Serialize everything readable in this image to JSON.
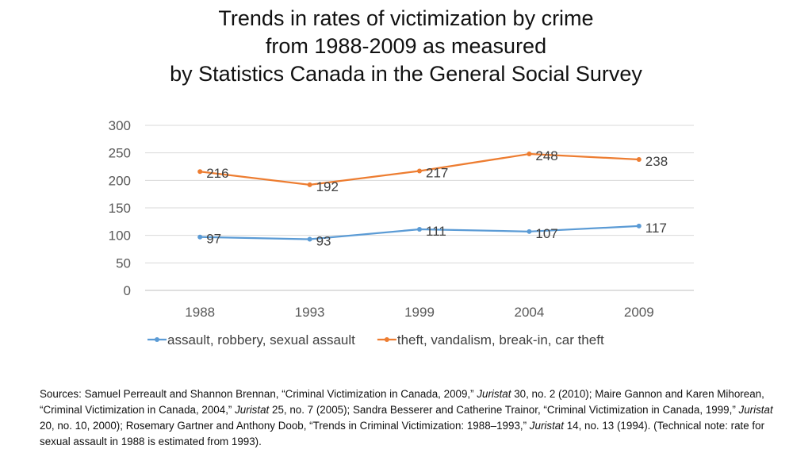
{
  "colors": {
    "series1": "#5b9bd5",
    "series2": "#ed7d31",
    "grid": "#d9d9d9",
    "axis": "#bfbfbf"
  },
  "chart_data": {
    "type": "line",
    "title_lines": [
      "Trends in rates of victimization by crime",
      "from 1988-2009  as measured",
      "by Statistics Canada in the General Social Survey"
    ],
    "categories": [
      "1988",
      "1993",
      "1999",
      "2004",
      "2009"
    ],
    "series": [
      {
        "name": "assault, robbery, sexual assault",
        "values": [
          97,
          93,
          111,
          107,
          117
        ]
      },
      {
        "name": "theft, vandalism, break-in, car theft",
        "values": [
          216,
          192,
          217,
          248,
          238
        ]
      }
    ],
    "ylim": [
      0,
      300
    ],
    "yticks": [
      0,
      50,
      100,
      150,
      200,
      250,
      300
    ],
    "grid": true,
    "legend": "bottom",
    "data_labels": true
  },
  "sources": {
    "s1": "Sources: Samuel Perreault and Shannon Brennan, “Criminal Victimization in Canada, 2009,” ",
    "j1": "Juristat",
    "s2": " 30, no. 2 (2010);  Maire Gannon and Karen Mihorean, “Criminal Victimization in Canada, 2004,” ",
    "j2": "Juristat",
    "s3": " 25, no. 7 (2005);  Sandra Besserer  and Catherine Trainor, “Criminal Victimization in Canada, 1999,” ",
    "j3": "Juristat",
    "s4": " 20, no. 10, 2000);   Rosemary Gartner and Anthony Doob, “Trends in Criminal Victimization: 1988–1993,” ",
    "j4": "Juristat",
    "s5": " 14, no. 13 (1994).  (Technical note: rate for sexual assault in 1988 is estimated from 1993)."
  }
}
